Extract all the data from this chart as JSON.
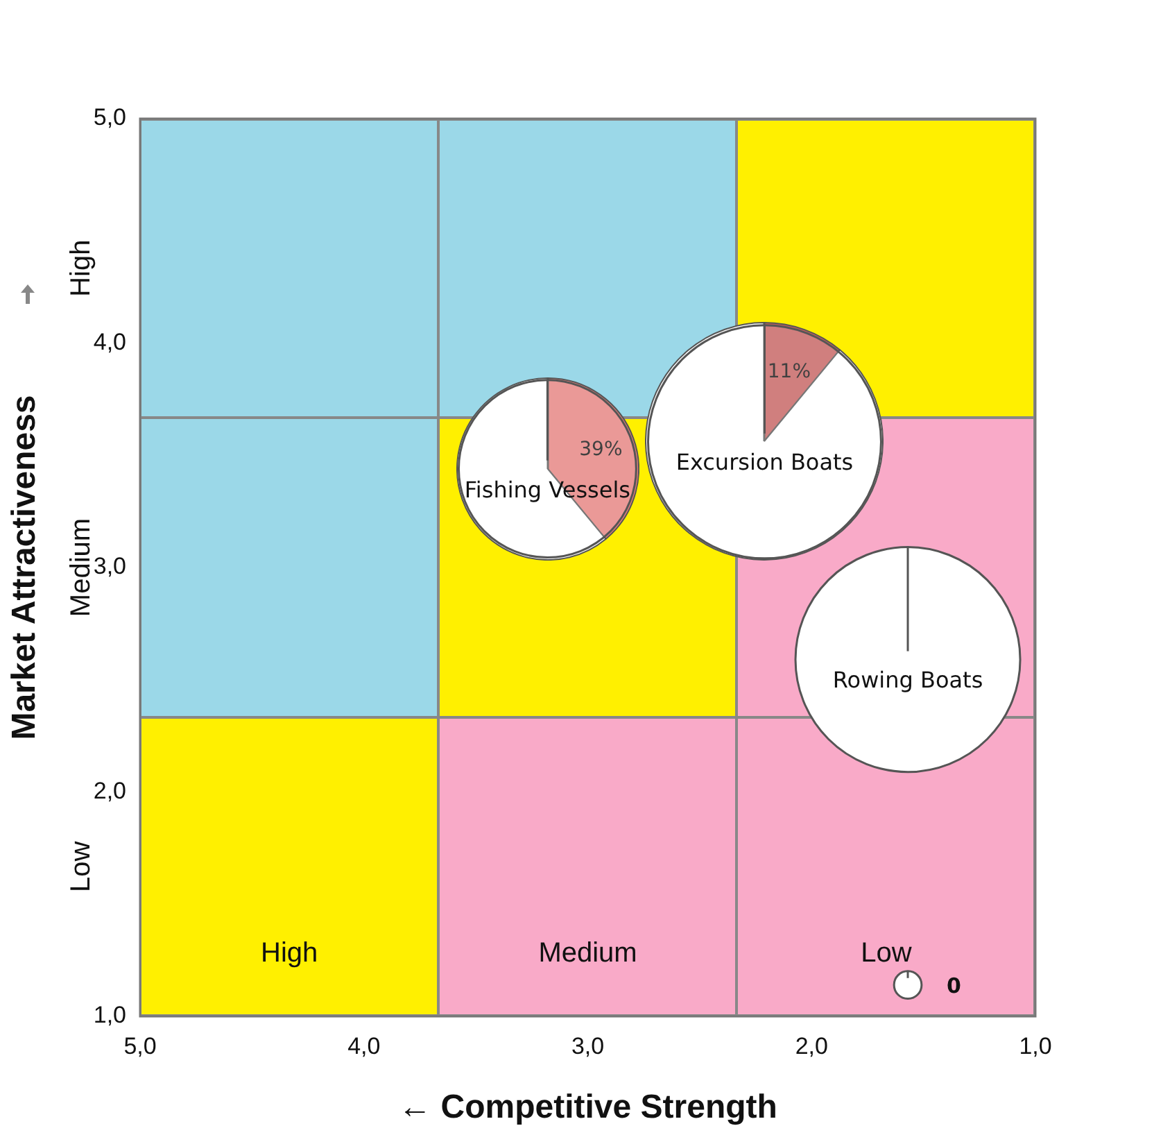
{
  "chart_data": [
    {
      "type": "bubble",
      "xlabel": "← Competitive Strength",
      "ylabel": "Market Attractiveness",
      "xlim": [
        5,
        1
      ],
      "ylim": [
        1,
        5
      ],
      "xticks": [
        {
          "value": 5,
          "label": "5,0"
        },
        {
          "value": 4,
          "label": "4,0"
        },
        {
          "value": 3,
          "label": "3,0"
        },
        {
          "value": 2,
          "label": "2,0"
        },
        {
          "value": 1,
          "label": "1,0"
        }
      ],
      "yticks": [
        {
          "value": 1,
          "label": "1,0"
        },
        {
          "value": 2,
          "label": "2,0"
        },
        {
          "value": 3,
          "label": "3,0"
        },
        {
          "value": 4,
          "label": "4,0"
        },
        {
          "value": 5,
          "label": "5,0"
        }
      ],
      "annotations": [
        "High",
        "Medium",
        "Low",
        "High",
        "Medium",
        "Low",
        {
          "text": "0",
          "x": 1.57,
          "y": 1.14
        }
      ],
      "series": [
        {
          "name": "Fishing Vessels",
          "color": "#ffffff",
          "x": [
            3.18
          ],
          "values": [
            3.44
          ],
          "sizes": [
            0.58
          ]
        },
        {
          "name": "Excursion Boats",
          "color": "#ffffff",
          "x": [
            2.21
          ],
          "values": [
            3.56
          ],
          "sizes": [
            1
          ]
        },
        {
          "name": "Rowing Boats",
          "color": "#ffffff",
          "x": [
            1.57
          ],
          "values": [
            2.59
          ],
          "sizes": [
            0.93
          ]
        },
        {
          "color": "#ffffff",
          "x": [
            1.57
          ],
          "values": [
            1.14
          ],
          "sizes": [
            0.014
          ]
        }
      ]
    },
    {
      "type": "pie",
      "categories": [
        null,
        null
      ],
      "values": [
        39,
        61
      ],
      "colors": [
        "#e5807d",
        "#ffffff"
      ],
      "value_labels": [
        "39%",
        null
      ]
    },
    {
      "type": "pie",
      "categories": [
        null,
        null
      ],
      "values": [
        11,
        89
      ],
      "colors": [
        "#c5605e",
        "#ffffff"
      ],
      "value_labels": [
        "11%",
        null
      ]
    }
  ]
}
